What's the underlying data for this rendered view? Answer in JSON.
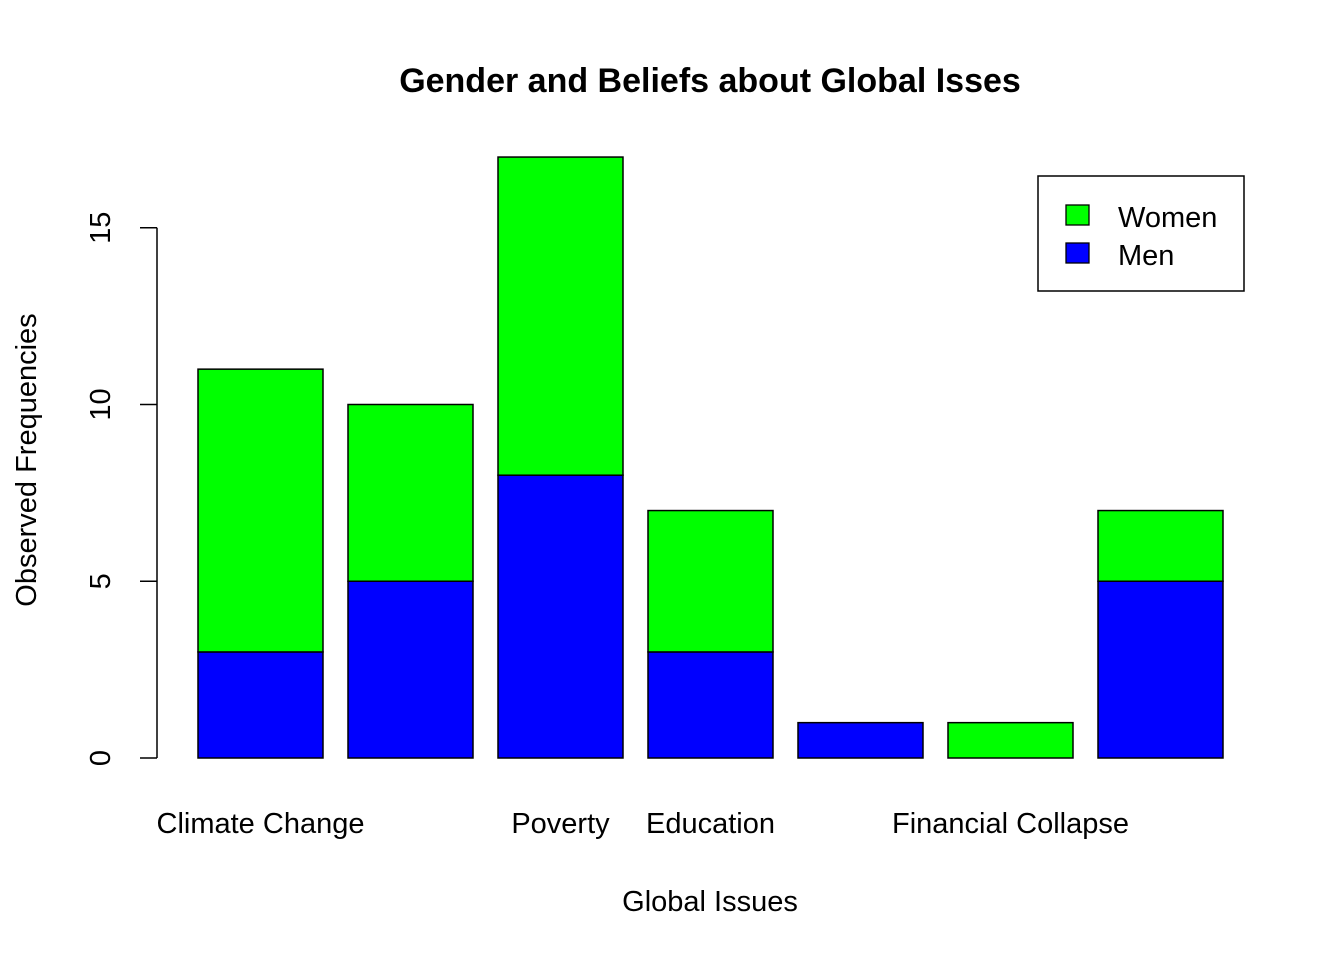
{
  "chart_data": {
    "type": "bar",
    "stacked": true,
    "title": "Gender and Beliefs about Global Isses",
    "xlabel": "Global Issues",
    "ylabel": "Observed Frequencies",
    "categories": [
      "Climate Change",
      "",
      "Poverty",
      "Education",
      "",
      "Financial Collapse",
      ""
    ],
    "series": [
      {
        "name": "Men",
        "color": "#0000FF",
        "values": [
          3,
          5,
          8,
          3,
          1,
          0,
          5
        ]
      },
      {
        "name": "Women",
        "color": "#00FF00",
        "values": [
          8,
          5,
          9,
          4,
          0,
          1,
          2
        ]
      }
    ],
    "yticks": [
      0,
      5,
      10,
      15
    ],
    "ylim": [
      0,
      17
    ],
    "grid": false,
    "legend": {
      "placement": "top-right",
      "entries": [
        {
          "label": "Women",
          "color": "#00FF00"
        },
        {
          "label": "Men",
          "color": "#0000FF"
        }
      ]
    }
  }
}
